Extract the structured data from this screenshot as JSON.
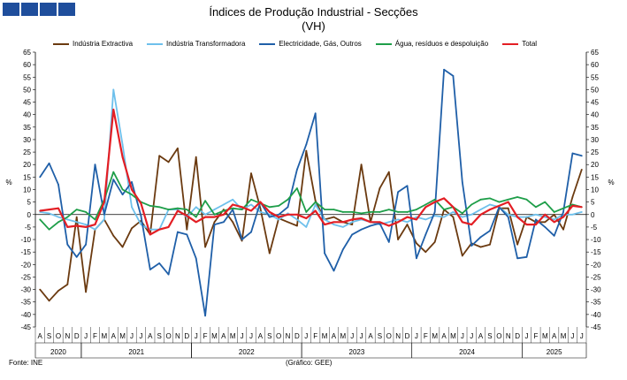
{
  "title": "Índices de Produção Industrial - Secções",
  "subtitle": "(VH)",
  "source": "Fonte: INE",
  "credit": "(Gráfico: GEE)",
  "chart_data": {
    "type": "line",
    "ylabel_left": "%",
    "ylabel_right": "%",
    "ylim": [
      -45,
      65
    ],
    "yticks": [
      -45,
      -40,
      -35,
      -30,
      -25,
      -20,
      -15,
      -10,
      -5,
      0,
      5,
      10,
      15,
      20,
      25,
      30,
      35,
      40,
      45,
      50,
      55,
      60,
      65
    ],
    "month_labels": [
      "A",
      "S",
      "O",
      "N",
      "D",
      "J",
      "F",
      "M",
      "A",
      "M",
      "J",
      "J",
      "A",
      "S",
      "O",
      "N",
      "D",
      "J",
      "F",
      "M",
      "A",
      "M",
      "J",
      "J",
      "A",
      "S",
      "O",
      "N",
      "D",
      "J",
      "F",
      "M",
      "A",
      "M",
      "J",
      "J",
      "A",
      "S",
      "O",
      "N",
      "D",
      "J",
      "F",
      "M",
      "A",
      "M",
      "J",
      "J",
      "A",
      "S",
      "O",
      "N",
      "D",
      "J",
      "F",
      "M",
      "A",
      "M",
      "J",
      "J"
    ],
    "years": [
      {
        "label": "2020",
        "start": 0,
        "count": 5
      },
      {
        "label": "2021",
        "start": 5,
        "count": 12
      },
      {
        "label": "2022",
        "start": 17,
        "count": 12
      },
      {
        "label": "2023",
        "start": 29,
        "count": 12
      },
      {
        "label": "2024",
        "start": 41,
        "count": 12
      },
      {
        "label": "2025",
        "start": 53,
        "count": 7
      }
    ],
    "series": [
      {
        "name": "Indústria Extractiva",
        "color": "#6b3a10",
        "values": [
          -30,
          -34.5,
          -30.5,
          -28,
          -1,
          -31,
          -6,
          -2,
          -8.5,
          -13,
          -5.5,
          -2.5,
          -8,
          23.5,
          21,
          26.5,
          -6,
          23,
          -13,
          -3,
          2,
          -3,
          -10.5,
          16.5,
          2.5,
          -15.5,
          -1.5,
          -3,
          -4.5,
          25.5,
          5.5,
          -2,
          -1,
          -3,
          -4,
          20,
          -3,
          10.5,
          17,
          -10,
          -4,
          -11.5,
          -15,
          -11,
          2,
          -1,
          -16.5,
          -11.5,
          -13,
          -12,
          2.5,
          2.5,
          -12,
          -1,
          -3,
          -3,
          0,
          -6,
          7,
          18
        ]
      },
      {
        "name": "Indústria Transformadora",
        "color": "#6ec0ec",
        "values": [
          1,
          0.5,
          -1,
          -2,
          -3,
          -4,
          -6,
          -2,
          50,
          28,
          3,
          -4,
          -6,
          -6,
          2,
          2,
          -1,
          3,
          0,
          2,
          4,
          6,
          2,
          4,
          1,
          0,
          -2,
          0.5,
          -2,
          -5,
          4,
          -2,
          -4,
          -5,
          -3,
          -2,
          -3,
          -4,
          -3,
          -2,
          -3,
          -1,
          -2,
          -0.5,
          -1,
          1,
          -1,
          0,
          2,
          4,
          3,
          0,
          -1,
          -1,
          0,
          -1,
          -2,
          0,
          0,
          1
        ]
      },
      {
        "name": "Electricidade, Gás, Outros",
        "color": "#1f5fa8",
        "values": [
          15,
          20.5,
          12,
          -12,
          -17,
          -12,
          20,
          0,
          14,
          8,
          13,
          -0.5,
          -22,
          -19.5,
          -24,
          -7,
          -8,
          -17.5,
          -40.5,
          -4,
          -3,
          2,
          -10,
          -7,
          5,
          -1,
          0,
          3,
          18,
          28,
          40.5,
          -15.5,
          -22.5,
          -14,
          -8,
          -6,
          -4.5,
          -3.5,
          -11,
          9,
          11.5,
          -17.5,
          -8,
          1,
          58,
          55.5,
          13,
          -12.5,
          -9,
          -6.5,
          3,
          -1,
          -17.5,
          -17,
          -2,
          -5,
          -8.5,
          1,
          24.5,
          23.5
        ]
      },
      {
        "name": "Água, resíduos e despoluição",
        "color": "#1e9e49",
        "values": [
          -2,
          -6,
          -3,
          -1,
          2,
          1,
          -2,
          6,
          17,
          10,
          8,
          5,
          3.5,
          3,
          2,
          2.5,
          2,
          -1,
          5.5,
          0,
          1.5,
          2.5,
          2,
          6,
          4.5,
          3,
          3.5,
          6,
          10.5,
          1,
          5,
          2,
          2,
          1,
          1,
          0.5,
          1,
          1,
          2,
          1,
          1,
          2,
          4,
          6,
          2,
          3,
          0.5,
          4,
          6,
          6.5,
          5,
          6,
          7,
          6,
          3,
          5,
          1,
          2.5,
          4,
          3
        ]
      },
      {
        "name": "Total",
        "color": "#e31e24",
        "values": [
          1.5,
          2,
          2.5,
          -5,
          -4.5,
          -5,
          -4,
          5,
          42,
          23,
          10,
          4.5,
          -8,
          -6,
          -5,
          1.5,
          -0.5,
          -3,
          -1,
          -1,
          0,
          4,
          3,
          1.5,
          5,
          1,
          -1,
          0,
          0,
          -1.5,
          1.5,
          -4,
          -3,
          -3,
          -2,
          -1.5,
          -3,
          -3,
          -4.5,
          -3,
          -1,
          -2,
          3,
          5,
          6.5,
          3,
          -3,
          -4,
          0,
          2,
          3.5,
          5,
          -1,
          -4,
          -4,
          0,
          -3,
          -1,
          3.5,
          3
        ]
      }
    ]
  }
}
